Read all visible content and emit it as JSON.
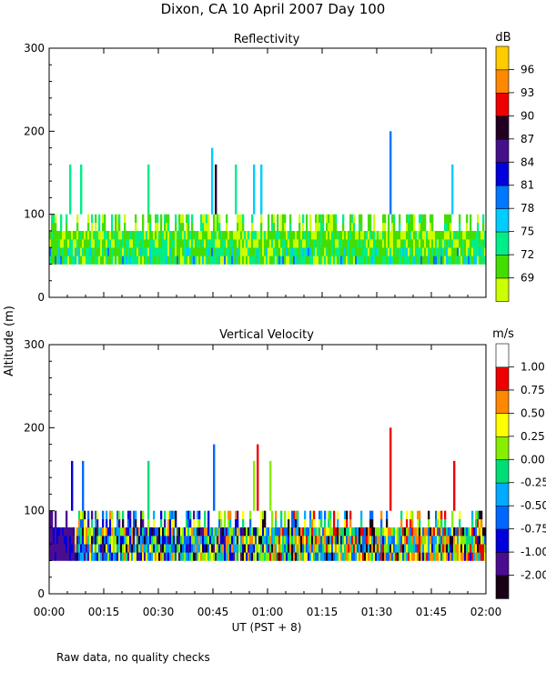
{
  "figure": {
    "title": "Dixon, CA 10 April 2007  Day 100",
    "y_axis_label": "Altitude (m)",
    "x_axis_label": "UT  (PST + 8)",
    "footnote": "Raw data, no quality checks"
  },
  "chart_data": [
    {
      "type": "heatmap",
      "title": "Reflectivity",
      "xlabel": "UT  (PST + 8)",
      "ylabel": "Altitude (m)",
      "x_ticks": [
        "00:00",
        "00:15",
        "00:30",
        "00:45",
        "01:00",
        "01:15",
        "01:30",
        "01:45",
        "02:00"
      ],
      "xlim_minutes": [
        0,
        120
      ],
      "y_ticks": [
        0,
        100,
        200,
        300
      ],
      "ylim": [
        0,
        300
      ],
      "colorbar_unit": "dB",
      "colorbar_labels": [
        "96",
        "93",
        "90",
        "87",
        "84",
        "81",
        "78",
        "75",
        "72",
        "69"
      ],
      "colorbar_values": [
        69,
        72,
        75,
        78,
        81,
        84,
        87,
        90,
        93,
        96,
        99
      ],
      "colorbar_colors": [
        "#ccff00",
        "#44dd00",
        "#00ee88",
        "#00ccff",
        "#0077ff",
        "#0000dd",
        "#44118a",
        "#220022",
        "#ee0000",
        "#ff8800",
        "#ffcc00"
      ],
      "observed_altitude_range_m": [
        40,
        100
      ],
      "tall_plumes": [
        {
          "t_min": 5.5,
          "top_m": 160,
          "value_db": 77
        },
        {
          "t_min": 8.5,
          "top_m": 160,
          "value_db": 76
        },
        {
          "t_min": 27,
          "top_m": 160,
          "value_db": 77
        },
        {
          "t_min": 44.5,
          "top_m": 180,
          "value_db": 79
        },
        {
          "t_min": 45.5,
          "top_m": 160,
          "value_db": 92
        },
        {
          "t_min": 51,
          "top_m": 160,
          "value_db": 77
        },
        {
          "t_min": 56,
          "top_m": 160,
          "value_db": 78
        },
        {
          "t_min": 58,
          "top_m": 160,
          "value_db": 80
        },
        {
          "t_min": 93.5,
          "top_m": 200,
          "value_db": 82
        },
        {
          "t_min": 110.5,
          "top_m": 160,
          "value_db": 79
        }
      ]
    },
    {
      "type": "heatmap",
      "title": "Vertical Velocity",
      "xlabel": "UT  (PST + 8)",
      "ylabel": "Altitude (m)",
      "x_ticks": [
        "00:00",
        "00:15",
        "00:30",
        "00:45",
        "01:00",
        "01:15",
        "01:30",
        "01:45",
        "02:00"
      ],
      "xlim_minutes": [
        0,
        120
      ],
      "y_ticks": [
        0,
        100,
        200,
        300
      ],
      "ylim": [
        0,
        300
      ],
      "colorbar_unit": "m/s",
      "colorbar_labels": [
        "1.00",
        "0.75",
        "0.50",
        "0.25",
        "0.00",
        "-0.25",
        "-0.50",
        "-0.75",
        "-1.00",
        "-2.00"
      ],
      "colorbar_values": [
        -2.0,
        -1.0,
        -0.75,
        -0.5,
        -0.25,
        0.0,
        0.25,
        0.5,
        0.75,
        1.0,
        1.25
      ],
      "colorbar_colors": [
        "#1a0016",
        "#4a0d8f",
        "#0000dd",
        "#0066ff",
        "#00aaff",
        "#00dd77",
        "#88ee00",
        "#ffff00",
        "#ff8800",
        "#ee0000",
        "#ffffff"
      ],
      "observed_altitude_range_m": [
        40,
        100
      ],
      "tall_plumes": [
        {
          "t_min": 6,
          "top_m": 160,
          "value_ms": -0.6
        },
        {
          "t_min": 9,
          "top_m": 160,
          "value_ms": -0.4
        },
        {
          "t_min": 27,
          "top_m": 160,
          "value_ms": 0.1
        },
        {
          "t_min": 45,
          "top_m": 180,
          "value_ms": -0.3
        },
        {
          "t_min": 56,
          "top_m": 160,
          "value_ms": 0.4
        },
        {
          "t_min": 57,
          "top_m": 180,
          "value_ms": 1.1
        },
        {
          "t_min": 60.5,
          "top_m": 160,
          "value_ms": 0.3
        },
        {
          "t_min": 93.5,
          "top_m": 200,
          "value_ms": 1.1
        },
        {
          "t_min": 111,
          "top_m": 160,
          "value_ms": 1.1
        }
      ]
    }
  ]
}
